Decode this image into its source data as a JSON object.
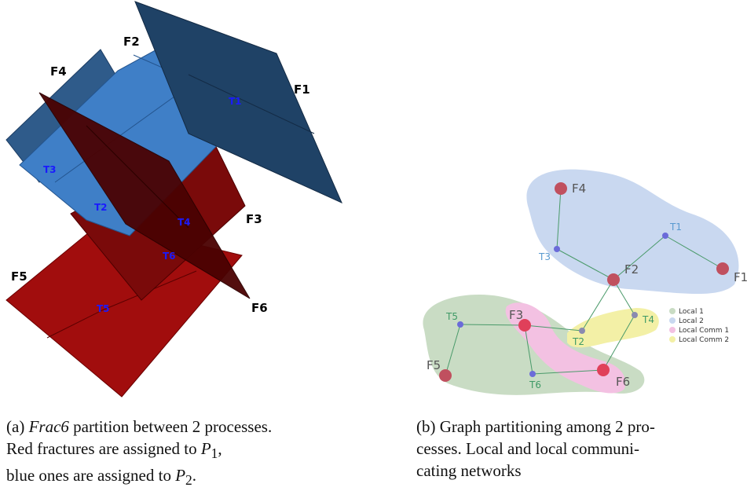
{
  "panel_a": {
    "fracture_labels": [
      "F1",
      "F2",
      "F3",
      "F4",
      "F5",
      "F6"
    ],
    "trace_labels": [
      "T1",
      "T2",
      "T3",
      "T4",
      "T5",
      "T6"
    ],
    "caption": {
      "prefix": "(a) ",
      "name": "Frac6",
      "line1_rest": " partition between 2 processes.",
      "line2_text": "Red fractures are assigned to ",
      "line2_var": "P",
      "line2_sub": "1",
      "line2_end": ",",
      "line3_text": "blue ones are assigned to ",
      "line3_var": "P",
      "line3_sub": "2",
      "line3_end": "."
    },
    "colors": {
      "red": "#8b0000",
      "blue": "#2e6bb5",
      "dark_blue": "#1d3d63"
    }
  },
  "panel_b": {
    "nodes": [
      {
        "label": "F1",
        "kind": "fracture"
      },
      {
        "label": "F2",
        "kind": "fracture"
      },
      {
        "label": "F3",
        "kind": "fracture"
      },
      {
        "label": "F4",
        "kind": "fracture"
      },
      {
        "label": "F5",
        "kind": "fracture"
      },
      {
        "label": "F6",
        "kind": "fracture"
      },
      {
        "label": "T1",
        "kind": "trace"
      },
      {
        "label": "T2",
        "kind": "trace"
      },
      {
        "label": "T3",
        "kind": "trace"
      },
      {
        "label": "T4",
        "kind": "trace"
      },
      {
        "label": "T5",
        "kind": "trace"
      },
      {
        "label": "T6",
        "kind": "trace"
      }
    ],
    "edges": [
      [
        "F4",
        "T3"
      ],
      [
        "T3",
        "F2"
      ],
      [
        "F2",
        "T1"
      ],
      [
        "T1",
        "F1"
      ],
      [
        "F2",
        "T2"
      ],
      [
        "F2",
        "T4"
      ],
      [
        "T5",
        "F3"
      ],
      [
        "T5",
        "F5"
      ],
      [
        "F3",
        "T2"
      ],
      [
        "F3",
        "T6"
      ],
      [
        "T6",
        "F6"
      ],
      [
        "F6",
        "T4"
      ]
    ],
    "legend": [
      {
        "label": "Local 1",
        "color": "#c9dcc4"
      },
      {
        "label": "Local 2",
        "color": "#c9d8f0"
      },
      {
        "label": "Local Comm 1",
        "color": "#f3c1e2"
      },
      {
        "label": "Local Comm 2",
        "color": "#f3f0a6"
      }
    ],
    "caption": {
      "line1": "(b) Graph partitioning among 2 pro-",
      "line2": "cesses.  Local and local communi-",
      "line3": "cating networks"
    },
    "colors": {
      "fracture_node": "#c0505f",
      "trace_node": "#6b6bd9",
      "edge": "#4a9a6a"
    }
  }
}
